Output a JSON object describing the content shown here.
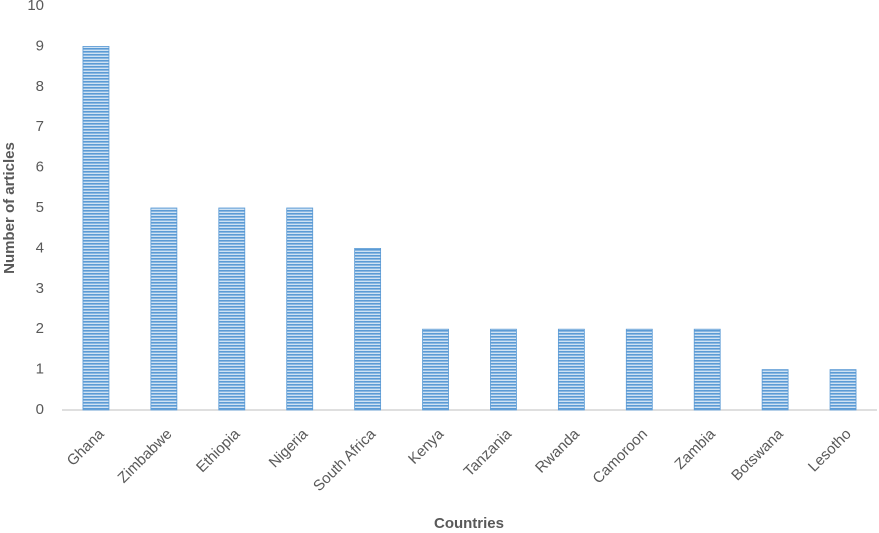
{
  "chart_data": {
    "type": "bar",
    "x_label": "Countries",
    "y_label": "Number of articles",
    "categories": [
      "Ghana",
      "Zimbabwe",
      "Ethiopia",
      "Nigeria",
      "South Africa",
      "Kenya",
      "Tanzania",
      "Rwanda",
      "Camoroon",
      "Zambia",
      "Botswana",
      "Lesotho"
    ],
    "values": [
      9,
      5,
      5,
      5,
      4,
      2,
      2,
      2,
      2,
      2,
      1,
      1
    ],
    "color": "#5b9bd5",
    "ylim": [
      0,
      10
    ],
    "yticks": [
      0,
      1,
      2,
      3,
      4,
      5,
      6,
      7,
      8,
      9,
      10
    ],
    "grid": false
  }
}
